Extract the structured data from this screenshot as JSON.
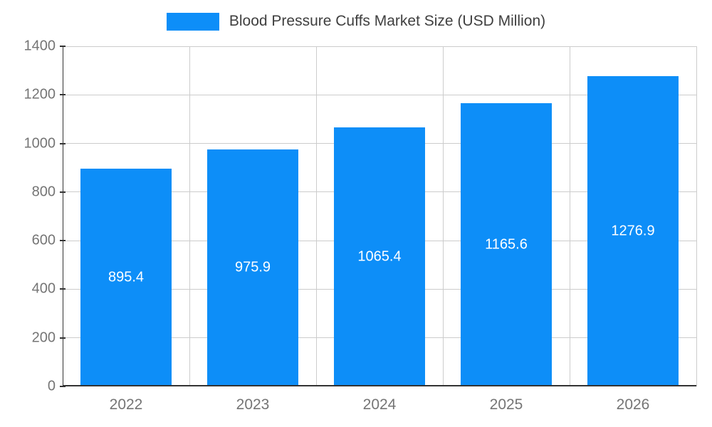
{
  "chart_data": {
    "type": "bar",
    "title": "Blood Pressure Cuffs Market Size (USD Million)",
    "categories": [
      "2022",
      "2023",
      "2024",
      "2025",
      "2026"
    ],
    "values": [
      895.4,
      975.9,
      1065.4,
      1165.6,
      1276.9
    ],
    "value_labels": [
      "895.4",
      "975.9",
      "1065.4",
      "1165.6",
      "1276.9"
    ],
    "xlabel": "",
    "ylabel": "",
    "ylim": [
      0,
      1400
    ],
    "yticks": [
      0,
      200,
      400,
      600,
      800,
      1000,
      1200,
      1400
    ],
    "grid": true,
    "legend_position": "top-center",
    "colors": {
      "bar": "#0d8ef8",
      "title_text": "#3f3f3f",
      "tick_text": "#757575",
      "gridline": "#cccccc",
      "axis": "#333333",
      "bar_label_text": "#ffffff",
      "background": "#ffffff"
    }
  }
}
